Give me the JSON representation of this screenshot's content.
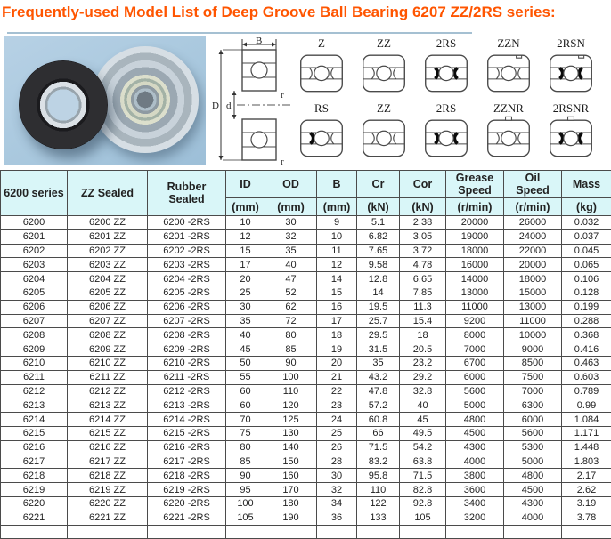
{
  "title": "Frequently-used Model List of Deep Groove Ball Bearing 6207 ZZ/2RS series:",
  "colors": {
    "title_accent": "#ff5500",
    "header_bg": "#d9f6f8",
    "table_border": "#4b4b4b",
    "photo_bg": "#a9c8de"
  },
  "diagrams": {
    "cross_section_labels": {
      "b": "B",
      "outer_diameter": "D",
      "bore": "d",
      "r_top": "r",
      "r_bottom": "r"
    },
    "cells": [
      {
        "label": "Z",
        "seals": "shield",
        "notch": false,
        "nub": false
      },
      {
        "label": "ZZ",
        "seals": "shield",
        "notch": false,
        "nub": false
      },
      {
        "label": "2RS",
        "seals": "2rs",
        "notch": false,
        "nub": false
      },
      {
        "label": "ZZN",
        "seals": "shield",
        "notch": true,
        "nub": false
      },
      {
        "label": "2RSN",
        "seals": "2rs",
        "notch": true,
        "nub": false
      },
      {
        "label": "RS",
        "seals": "rs",
        "notch": false,
        "nub": false
      },
      {
        "label": "ZZ",
        "seals": "shield",
        "notch": false,
        "nub": false
      },
      {
        "label": "2RS",
        "seals": "2rs",
        "notch": false,
        "nub": false
      },
      {
        "label": "ZZNR",
        "seals": "shield",
        "notch": false,
        "nub": true
      },
      {
        "label": "2RSNR",
        "seals": "2rs",
        "notch": false,
        "nub": true
      }
    ]
  },
  "table": {
    "headers": {
      "series": "6200 series",
      "zz": "ZZ Sealed",
      "rubber": "Rubber\nSealed",
      "id": "ID",
      "od": "OD",
      "b": "B",
      "cr": "Cr",
      "cor": "Cor",
      "grease": "Grease\nSpeed",
      "oil": "Oil\nSpeed",
      "mass": "Mass"
    },
    "units": {
      "id": "(mm)",
      "od": "(mm)",
      "b": "(mm)",
      "cr": "(kN)",
      "cor": "(kN)",
      "grease": "(r/min)",
      "oil": "(r/min)",
      "mass": "(kg)"
    },
    "rows": [
      [
        "6200",
        "6200 ZZ",
        "6200 -2RS",
        "10",
        "30",
        "9",
        "5.1",
        "2.38",
        "20000",
        "26000",
        "0.032"
      ],
      [
        "6201",
        "6201 ZZ",
        "6201 -2RS",
        "12",
        "32",
        "10",
        "6.82",
        "3.05",
        "19000",
        "24000",
        "0.037"
      ],
      [
        "6202",
        "6202 ZZ",
        "6202 -2RS",
        "15",
        "35",
        "11",
        "7.65",
        "3.72",
        "18000",
        "22000",
        "0.045"
      ],
      [
        "6203",
        "6203 ZZ",
        "6203 -2RS",
        "17",
        "40",
        "12",
        "9.58",
        "4.78",
        "16000",
        "20000",
        "0.065"
      ],
      [
        "6204",
        "6204 ZZ",
        "6204 -2RS",
        "20",
        "47",
        "14",
        "12.8",
        "6.65",
        "14000",
        "18000",
        "0.106"
      ],
      [
        "6205",
        "6205 ZZ",
        "6205 -2RS",
        "25",
        "52",
        "15",
        "14",
        "7.85",
        "13000",
        "15000",
        "0.128"
      ],
      [
        "6206",
        "6206 ZZ",
        "6206 -2RS",
        "30",
        "62",
        "16",
        "19.5",
        "11.3",
        "11000",
        "13000",
        "0.199"
      ],
      [
        "6207",
        "6207 ZZ",
        "6207 -2RS",
        "35",
        "72",
        "17",
        "25.7",
        "15.4",
        "9200",
        "11000",
        "0.288"
      ],
      [
        "6208",
        "6208 ZZ",
        "6208 -2RS",
        "40",
        "80",
        "18",
        "29.5",
        "18",
        "8000",
        "10000",
        "0.368"
      ],
      [
        "6209",
        "6209 ZZ",
        "6209 -2RS",
        "45",
        "85",
        "19",
        "31.5",
        "20.5",
        "7000",
        "9000",
        "0.416"
      ],
      [
        "6210",
        "6210 ZZ",
        "6210 -2RS",
        "50",
        "90",
        "20",
        "35",
        "23.2",
        "6700",
        "8500",
        "0.463"
      ],
      [
        "6211",
        "6211 ZZ",
        "6211 -2RS",
        "55",
        "100",
        "21",
        "43.2",
        "29.2",
        "6000",
        "7500",
        "0.603"
      ],
      [
        "6212",
        "6212 ZZ",
        "6212 -2RS",
        "60",
        "110",
        "22",
        "47.8",
        "32.8",
        "5600",
        "7000",
        "0.789"
      ],
      [
        "6213",
        "6213 ZZ",
        "6213 -2RS",
        "60",
        "120",
        "23",
        "57.2",
        "40",
        "5000",
        "6300",
        "0.99"
      ],
      [
        "6214",
        "6214 ZZ",
        "6214 -2RS",
        "70",
        "125",
        "24",
        "60.8",
        "45",
        "4800",
        "6000",
        "1.084"
      ],
      [
        "6215",
        "6215 ZZ",
        "6215 -2RS",
        "75",
        "130",
        "25",
        "66",
        "49.5",
        "4500",
        "5600",
        "1.171"
      ],
      [
        "6216",
        "6216 ZZ",
        "6216 -2RS",
        "80",
        "140",
        "26",
        "71.5",
        "54.2",
        "4300",
        "5300",
        "1.448"
      ],
      [
        "6217",
        "6217 ZZ",
        "6217 -2RS",
        "85",
        "150",
        "28",
        "83.2",
        "63.8",
        "4000",
        "5000",
        "1.803"
      ],
      [
        "6218",
        "6218 ZZ",
        "6218 -2RS",
        "90",
        "160",
        "30",
        "95.8",
        "71.5",
        "3800",
        "4800",
        "2.17"
      ],
      [
        "6219",
        "6219 ZZ",
        "6219 -2RS",
        "95",
        "170",
        "32",
        "110",
        "82.8",
        "3600",
        "4500",
        "2.62"
      ],
      [
        "6220",
        "6220 ZZ",
        "6220 -2RS",
        "100",
        "180",
        "34",
        "122",
        "92.8",
        "3400",
        "4300",
        "3.19"
      ],
      [
        "6221",
        "6221 ZZ",
        "6221 -2RS",
        "105",
        "190",
        "36",
        "133",
        "105",
        "3200",
        "4000",
        "3.78"
      ]
    ]
  }
}
